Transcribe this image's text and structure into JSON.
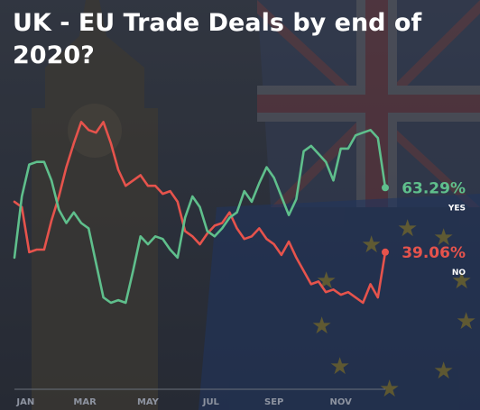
{
  "title": "UK - EU Trade Deals by end of 2020?",
  "colors": {
    "yes": "#5fbf8c",
    "no": "#e6534c",
    "axis_text": "#8d93a0",
    "background": "#2f3540"
  },
  "chart_data": {
    "type": "line",
    "title": "UK - EU Trade Deals by end of 2020?",
    "xlabel": "",
    "ylabel": "",
    "grid": false,
    "ylim": [
      0,
      100
    ],
    "x_ticks": [
      "JAN",
      "MAR",
      "MAY",
      "JUL",
      "SEP",
      "NOV"
    ],
    "x_range_weeks": [
      0,
      50
    ],
    "series": [
      {
        "name": "YES",
        "end_label": "63.29%",
        "x_weeks": [
          0,
          1,
          2,
          3,
          4,
          5,
          6,
          7,
          8,
          9,
          10,
          11,
          12,
          13,
          14,
          15,
          16,
          17,
          18,
          19,
          20,
          21,
          22,
          23,
          24,
          25,
          26,
          27,
          28,
          29,
          30,
          31,
          32,
          33,
          34,
          35,
          36,
          37,
          38,
          39,
          40,
          41,
          42,
          43,
          44,
          45,
          46,
          47,
          48,
          49,
          50
        ],
        "values": [
          37,
          60,
          72,
          73,
          73,
          66,
          55,
          50,
          54,
          50,
          48,
          35,
          22,
          20,
          21,
          20,
          32,
          45,
          42,
          45,
          44,
          40,
          37,
          52,
          60,
          56,
          47,
          45,
          48,
          52,
          54,
          62,
          58,
          65,
          71,
          67,
          60,
          53,
          59,
          77,
          79,
          76,
          73,
          66,
          78,
          78,
          83,
          84,
          85,
          82,
          63.29
        ]
      },
      {
        "name": "NO",
        "end_label": "39.06%",
        "x_weeks": [
          0,
          1,
          2,
          3,
          4,
          5,
          6,
          7,
          8,
          9,
          10,
          11,
          12,
          13,
          14,
          15,
          16,
          17,
          18,
          19,
          20,
          21,
          22,
          23,
          24,
          25,
          26,
          27,
          28,
          29,
          30,
          31,
          32,
          33,
          34,
          35,
          36,
          37,
          38,
          39,
          40,
          41,
          42,
          43,
          44,
          45,
          46,
          47,
          48,
          49,
          50
        ],
        "values": [
          58,
          56,
          39,
          40,
          40,
          51,
          60,
          71,
          80,
          88,
          85,
          84,
          88,
          80,
          70,
          64,
          66,
          68,
          64,
          64,
          61,
          62,
          58,
          47,
          45,
          42,
          46,
          49,
          50,
          54,
          48,
          44,
          45,
          48,
          44,
          42,
          38,
          43,
          37,
          32,
          27,
          28,
          24,
          25,
          23,
          24,
          22,
          20,
          27,
          22,
          39.06
        ]
      }
    ]
  }
}
